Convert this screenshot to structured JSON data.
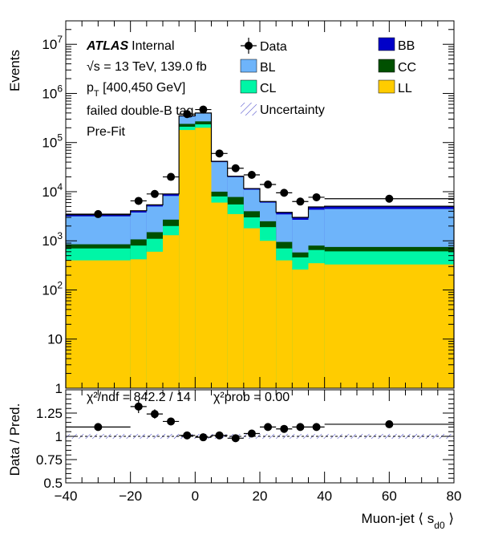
{
  "chart_data": [
    {
      "panel": "main",
      "type": "stacked-histogram",
      "ylabel": "Events",
      "yscale": "log",
      "ylim": [
        1,
        30000000
      ],
      "xlim": [
        -40,
        80
      ],
      "y_tick_labels": [
        "1",
        "10",
        "10^2",
        "10^3",
        "10^4",
        "10^5",
        "10^6",
        "10^7"
      ],
      "bins": [
        -40,
        -20,
        -15,
        -10,
        -5,
        0,
        5,
        10,
        15,
        20,
        25,
        30,
        35,
        40,
        80
      ],
      "series": [
        {
          "name": "LL",
          "color": "#ffcc00",
          "values": [
            400,
            420,
            600,
            1300,
            180000,
            200000,
            6000,
            3500,
            1800,
            1000,
            400,
            260,
            350,
            330
          ]
        },
        {
          "name": "CL",
          "color": "#00f6a6",
          "values": [
            300,
            380,
            500,
            700,
            30000,
            35000,
            2000,
            2000,
            1200,
            900,
            300,
            200,
            300,
            280
          ]
        },
        {
          "name": "CC",
          "color": "#005000",
          "values": [
            150,
            270,
            400,
            700,
            30000,
            35000,
            2000,
            2300,
            1000,
            600,
            250,
            120,
            150,
            140
          ]
        },
        {
          "name": "BL",
          "color": "#6eb4fa",
          "values": [
            2300,
            2700,
            3500,
            5500,
            100000,
            120000,
            30000,
            12000,
            7000,
            3500,
            2500,
            2100,
            3500,
            3700
          ]
        },
        {
          "name": "BB",
          "color": "#0000c8",
          "values": [
            250,
            330,
            400,
            800,
            10000,
            10000,
            1500,
            800,
            600,
            300,
            350,
            320,
            600,
            600
          ]
        }
      ],
      "data": {
        "name": "Data",
        "x": [
          -30,
          -17.5,
          -12.5,
          -7.5,
          -2.5,
          2.5,
          7.5,
          12.5,
          17.5,
          22.5,
          27.5,
          32.5,
          37.5,
          60
        ],
        "y": [
          3500,
          6500,
          9000,
          20000,
          380000,
          470000,
          60000,
          30000,
          22000,
          14000,
          9500,
          6300,
          7700,
          7200
        ]
      },
      "legend": [
        "Data",
        "BB",
        "BL",
        "CC",
        "CL",
        "LL",
        "Uncertainty"
      ],
      "annotations": {
        "atlas": "ATLAS",
        "status": "Internal",
        "energy": "√s = 13 TeV, 139.0 fb",
        "pt_prefix": "p",
        "pt_sub": "T",
        "pt_range": " [400,450 GeV]",
        "region": "failed double-B tag",
        "fit": "Pre-Fit"
      }
    },
    {
      "panel": "ratio",
      "type": "scatter",
      "ylabel": "Data / Pred.",
      "ylim": [
        0.5,
        1.5
      ],
      "y_tick_labels": [
        "0.5",
        "0.75",
        "1",
        "1.25"
      ],
      "xlabel": "Muon-jet ⟨ s",
      "xlabel_sub": "d0",
      "xlabel_end": " ⟩",
      "x_tick_labels": [
        "−40",
        "−20",
        "0",
        "20",
        "40",
        "60",
        "80"
      ],
      "x": [
        -30,
        -17.5,
        -12.5,
        -7.5,
        -2.5,
        2.5,
        7.5,
        12.5,
        17.5,
        22.5,
        27.5,
        32.5,
        37.5,
        60
      ],
      "values": [
        1.1,
        1.32,
        1.24,
        1.16,
        1.01,
        0.99,
        1.01,
        0.98,
        1.03,
        1.1,
        1.08,
        1.1,
        1.1,
        1.13
      ],
      "errors": [
        0.04,
        0.07,
        0.05,
        0.04,
        0.01,
        0.01,
        0.02,
        0.02,
        0.02,
        0.03,
        0.03,
        0.03,
        0.03,
        0.03
      ],
      "chi2_label": "χ²/ndf = 842.2 / 14",
      "prob_label": "χ²prob = 0.00"
    }
  ]
}
